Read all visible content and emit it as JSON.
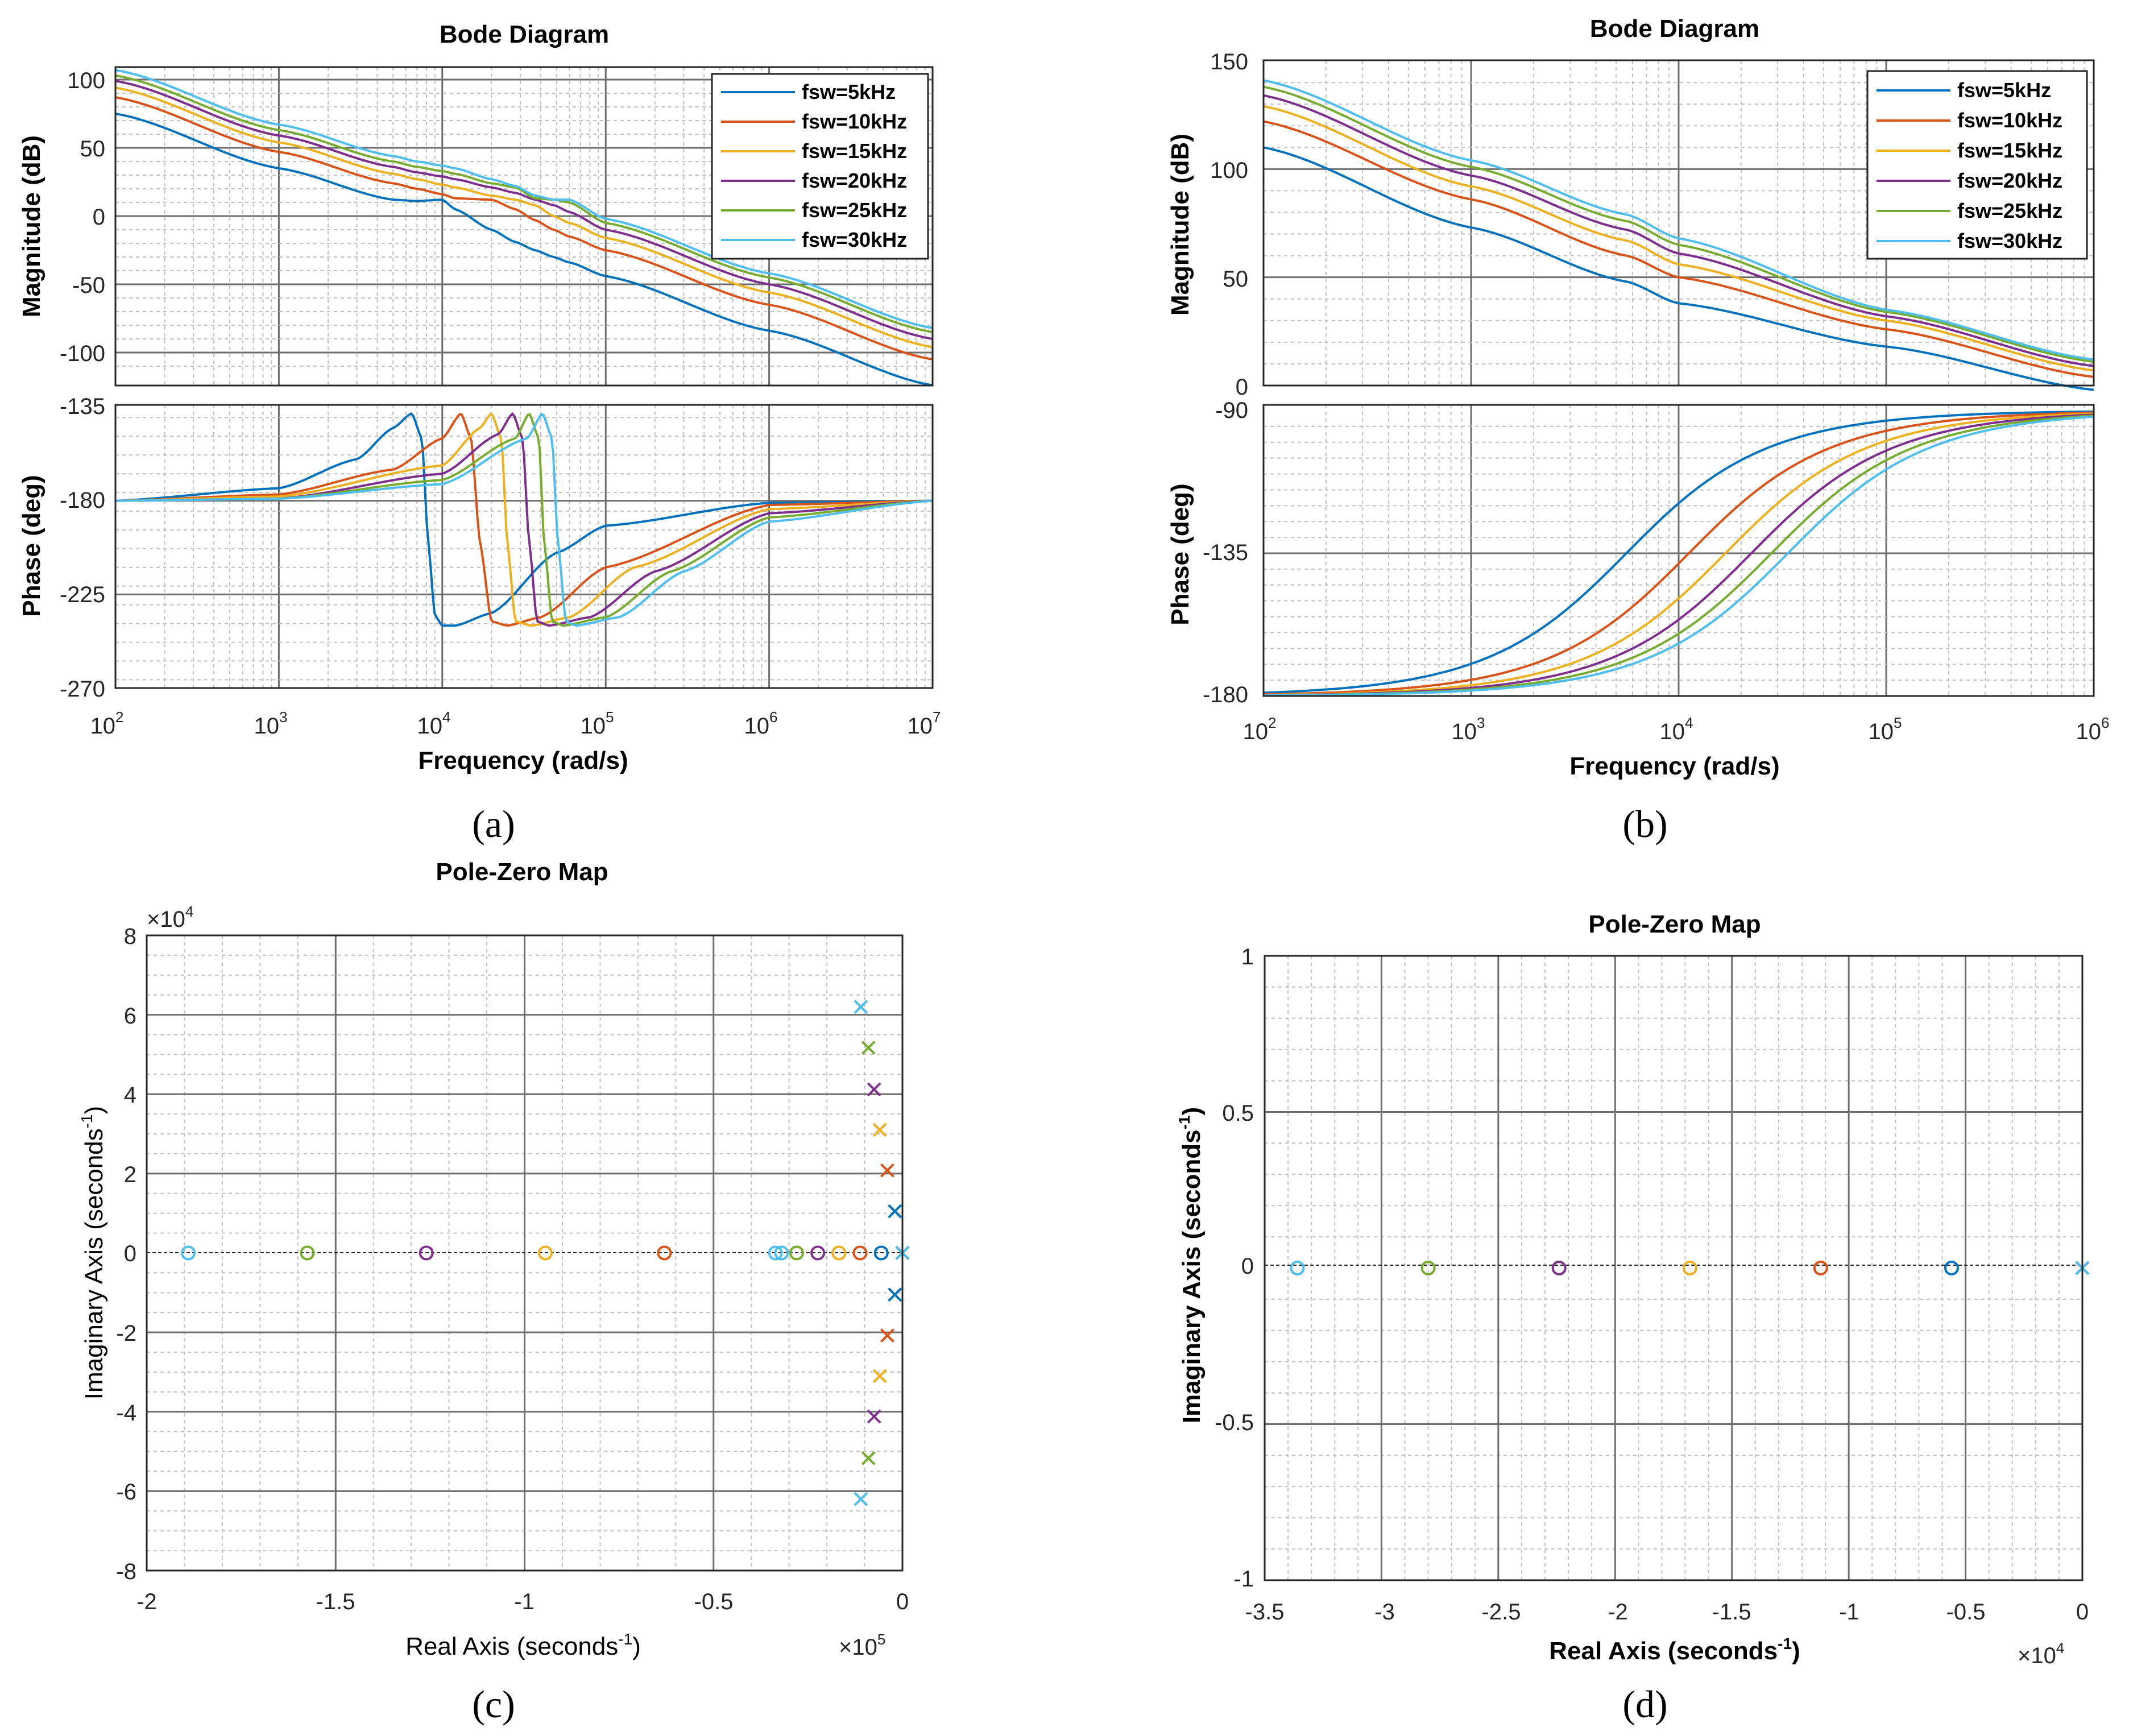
{
  "colors": [
    "#0072BD",
    "#D95319",
    "#EDB120",
    "#7E2F8E",
    "#77AC30",
    "#4DBEEE"
  ],
  "panels": {
    "a": {
      "caption": "(a)",
      "title": "Bode Diagram",
      "xlabel": "Frequency  (rad/s)",
      "mag_ylabel": "Magnitude (dB)",
      "phase_ylabel": "Phase (deg)",
      "xtick_bases": [
        "10",
        "10",
        "10",
        "10",
        "10",
        "10"
      ],
      "xtick_exps": [
        "2",
        "3",
        "4",
        "5",
        "6",
        "7"
      ],
      "mag_ticks": [
        "100",
        "50",
        "0",
        "-50",
        "-100"
      ],
      "phase_ticks": [
        "-135",
        "-180",
        "-225",
        "-270"
      ],
      "legend": [
        "fsw=5kHz",
        "fsw=10kHz",
        "fsw=15kHz",
        "fsw=20kHz",
        "fsw=25kHz",
        "fsw=30kHz"
      ]
    },
    "b": {
      "caption": "(b)",
      "title": "Bode Diagram",
      "xlabel": "Frequency  (rad/s)",
      "mag_ylabel": "Magnitude (dB)",
      "phase_ylabel": "Phase (deg)",
      "xtick_bases": [
        "10",
        "10",
        "10",
        "10",
        "10"
      ],
      "xtick_exps": [
        "2",
        "3",
        "4",
        "5",
        "6"
      ],
      "mag_ticks": [
        "150",
        "100",
        "50",
        "0"
      ],
      "phase_ticks": [
        "-90",
        "-135",
        "-180"
      ],
      "legend": [
        "fsw=5kHz",
        "fsw=10kHz",
        "fsw=15kHz",
        "fsw=20kHz",
        "fsw=25kHz",
        "fsw=30kHz"
      ]
    },
    "c": {
      "caption": "(c)",
      "title": "Pole-Zero Map",
      "xlabel_main": "Real Axis (seconds",
      "xlabel_sup": "-1",
      "xlabel_end": ")",
      "ylabel_main": "Imaginary Axis (seconds",
      "ylabel_sup": "-1",
      "ylabel_end": ")",
      "xticks": [
        "-2",
        "-1.5",
        "-1",
        "-0.5",
        "0"
      ],
      "yticks": [
        "8",
        "6",
        "4",
        "2",
        "0",
        "-2",
        "-4",
        "-6",
        "-8"
      ],
      "x_mult_prefix": "×10",
      "x_mult_exp": "5",
      "y_mult_prefix": "×10",
      "y_mult_exp": "4"
    },
    "d": {
      "caption": "(d)",
      "title": "Pole-Zero Map",
      "xlabel_main": "Real Axis (seconds",
      "xlabel_sup": "-1",
      "xlabel_end": ")",
      "ylabel_main": "Imaginary Axis (seconds",
      "ylabel_sup": "-1",
      "ylabel_end": ")",
      "xticks": [
        "-3.5",
        "-3",
        "-2.5",
        "-2",
        "-1.5",
        "-1",
        "-0.5",
        "0"
      ],
      "yticks": [
        "1",
        "0.5",
        "0",
        "-0.5",
        "-1"
      ],
      "x_mult_prefix": "×10",
      "x_mult_exp": "4"
    }
  },
  "chart_data": [
    {
      "type": "line",
      "panel": "a-magnitude",
      "title": "Bode Diagram",
      "xscale": "log",
      "xlim": [
        100,
        10000000
      ],
      "ylim": [
        -120,
        110
      ],
      "xlabel": "Frequency (rad/s)",
      "ylabel": "Magnitude (dB)",
      "x": [
        100,
        1000,
        5000,
        7000,
        10000,
        12000,
        20000,
        28000,
        37000,
        48000,
        60000,
        100000,
        1000000,
        10000000
      ],
      "series": [
        {
          "name": "fsw=5kHz",
          "values": [
            75,
            35,
            12,
            11,
            12,
            5,
            -10,
            -19,
            -25,
            -30,
            -34,
            -44,
            -84,
            -124
          ]
        },
        {
          "name": "fsw=10kHz",
          "values": [
            87,
            47,
            24,
            20,
            16,
            13,
            12,
            5,
            -3,
            -10,
            -15,
            -25,
            -65,
            -105
          ]
        },
        {
          "name": "fsw=15kHz",
          "values": [
            94,
            54,
            31,
            27,
            23,
            21,
            15,
            12,
            8,
            0,
            -5,
            -16,
            -56,
            -96
          ]
        },
        {
          "name": "fsw=20kHz",
          "values": [
            99,
            59,
            36,
            32,
            29,
            27,
            21,
            17,
            12,
            8,
            3,
            -10,
            -50,
            -90
          ]
        },
        {
          "name": "fsw=25kHz",
          "values": [
            103,
            63,
            40,
            36,
            33,
            31,
            24,
            21,
            13,
            12,
            10,
            -5,
            -45,
            -85
          ]
        },
        {
          "name": "fsw=30kHz",
          "values": [
            107,
            67,
            44,
            40,
            37,
            35,
            27,
            22,
            15,
            12,
            12,
            -2,
            -42,
            -82
          ]
        }
      ]
    },
    {
      "type": "line",
      "panel": "a-phase",
      "xscale": "log",
      "xlim": [
        100,
        10000000
      ],
      "ylim": [
        -270,
        -135
      ],
      "xlabel": "Frequency (rad/s)",
      "ylabel": "Phase (deg)",
      "series": [
        {
          "name": "fsw=5kHz",
          "x": [
            100,
            1000,
            3000,
            5000,
            6500,
            7500,
            8200,
            9000,
            10000,
            12000,
            20000,
            50000,
            100000,
            1000000,
            10000000
          ],
          "values": [
            -180,
            -174,
            -160,
            -145,
            -138,
            -150,
            -200,
            -235,
            -240,
            -240,
            -234,
            -205,
            -192,
            -181,
            -180
          ]
        },
        {
          "name": "fsw=10kHz",
          "x": [
            100,
            1000,
            5000,
            10000,
            13000,
            15000,
            17000,
            20000,
            25000,
            40000,
            100000,
            1000000,
            10000000
          ],
          "values": [
            -180,
            -177,
            -165,
            -150,
            -138,
            -150,
            -200,
            -238,
            -240,
            -236,
            -212,
            -182,
            -180
          ]
        },
        {
          "name": "fsw=15kHz",
          "x": [
            100,
            1000,
            10000,
            17000,
            20000,
            23000,
            25000,
            28000,
            35000,
            60000,
            150000,
            1000000,
            10000000
          ],
          "values": [
            -180,
            -178,
            -163,
            -145,
            -138,
            -150,
            -200,
            -238,
            -240,
            -236,
            -212,
            -184,
            -180
          ]
        },
        {
          "name": "fsw=20kHz",
          "x": [
            100,
            1000,
            10000,
            22000,
            27000,
            31000,
            34000,
            38000,
            45000,
            80000,
            200000,
            1000000,
            10000000
          ],
          "values": [
            -180,
            -179,
            -167,
            -148,
            -138,
            -150,
            -200,
            -238,
            -240,
            -236,
            -214,
            -186,
            -180
          ]
        },
        {
          "name": "fsw=25kHz",
          "x": [
            100,
            1000,
            10000,
            28000,
            34000,
            39000,
            42000,
            47000,
            55000,
            100000,
            250000,
            1000000,
            10000000
          ],
          "values": [
            -180,
            -179,
            -170,
            -150,
            -138,
            -150,
            -200,
            -238,
            -240,
            -236,
            -214,
            -188,
            -180
          ]
        },
        {
          "name": "fsw=30kHz",
          "x": [
            100,
            1000,
            10000,
            33000,
            41000,
            47000,
            51000,
            57000,
            66000,
            120000,
            300000,
            1000000,
            10000000
          ],
          "values": [
            -180,
            -179,
            -172,
            -150,
            -138,
            -150,
            -200,
            -238,
            -240,
            -236,
            -214,
            -190,
            -180
          ]
        }
      ]
    },
    {
      "type": "line",
      "panel": "b-magnitude",
      "title": "Bode Diagram",
      "xscale": "log",
      "xlim": [
        100,
        1000000
      ],
      "ylim": [
        0,
        150
      ],
      "xlabel": "Frequency (rad/s)",
      "ylabel": "Magnitude (dB)",
      "x": [
        100,
        1000,
        5600,
        10000,
        100000,
        1000000
      ],
      "series": [
        {
          "name": "fsw=5kHz",
          "values": [
            110,
            73,
            48,
            38,
            18,
            -2
          ]
        },
        {
          "name": "fsw=10kHz",
          "values": [
            122,
            86,
            60,
            50,
            26,
            4
          ]
        },
        {
          "name": "fsw=15kHz",
          "values": [
            129,
            92,
            67,
            56,
            30,
            7
          ]
        },
        {
          "name": "fsw=20kHz",
          "values": [
            134,
            97,
            72,
            61,
            32,
            9
          ]
        },
        {
          "name": "fsw=25kHz",
          "values": [
            138,
            101,
            76,
            65,
            34,
            11
          ]
        },
        {
          "name": "fsw=30kHz",
          "values": [
            141,
            104,
            79,
            68,
            35,
            12
          ]
        }
      ]
    },
    {
      "type": "line",
      "panel": "b-phase",
      "xscale": "log",
      "xlim": [
        100,
        1000000
      ],
      "ylim": [
        -180,
        -90
      ],
      "xlabel": "Frequency (rad/s)",
      "ylabel": "Phase (deg)",
      "corner_frequencies": [
        5600,
        11200,
        16800,
        22400,
        28000,
        33600
      ],
      "series_names": [
        "fsw=5kHz",
        "fsw=10kHz",
        "fsw=15kHz",
        "fsw=20kHz",
        "fsw=25kHz",
        "fsw=30kHz"
      ]
    },
    {
      "type": "scatter",
      "panel": "c",
      "title": "Pole-Zero Map",
      "xlim": [
        -2.0,
        0
      ],
      "ylim": [
        -8,
        8
      ],
      "x_scale_factor": "10^5",
      "y_scale_factor": "10^4",
      "series": [
        {
          "name": "fsw=5kHz",
          "poles": [
            [
              0,
              0
            ],
            [
              -0.02,
              1.05
            ],
            [
              -0.02,
              -1.05
            ]
          ],
          "zeros": [
            [
              -0.056,
              0
            ]
          ]
        },
        {
          "name": "fsw=10kHz",
          "poles": [
            [
              0,
              0
            ],
            [
              -0.04,
              2.08
            ],
            [
              -0.04,
              -2.08
            ]
          ],
          "zeros": [
            [
              -0.63,
              0
            ],
            [
              -0.112,
              0
            ]
          ]
        },
        {
          "name": "fsw=15kHz",
          "poles": [
            [
              0,
              0
            ],
            [
              -0.06,
              3.1
            ],
            [
              -0.06,
              -3.1
            ]
          ],
          "zeros": [
            [
              -0.945,
              0
            ],
            [
              -0.168,
              0
            ]
          ]
        },
        {
          "name": "fsw=20kHz",
          "poles": [
            [
              0,
              0
            ],
            [
              -0.075,
              4.12
            ],
            [
              -0.075,
              -4.12
            ]
          ],
          "zeros": [
            [
              -1.26,
              0
            ],
            [
              -0.224,
              0
            ]
          ]
        },
        {
          "name": "fsw=25kHz",
          "poles": [
            [
              0,
              0
            ],
            [
              -0.09,
              5.17
            ],
            [
              -0.09,
              -5.17
            ]
          ],
          "zeros": [
            [
              -1.575,
              0
            ],
            [
              -0.28,
              0
            ]
          ]
        },
        {
          "name": "fsw=30kHz",
          "poles": [
            [
              0,
              0
            ],
            [
              -0.11,
              6.2
            ],
            [
              -0.11,
              -6.2
            ]
          ],
          "zeros": [
            [
              -1.89,
              0
            ],
            [
              -0.336,
              0
            ],
            [
              -0.32,
              0
            ]
          ]
        }
      ]
    },
    {
      "type": "scatter",
      "panel": "d",
      "title": "Pole-Zero Map",
      "xlim": [
        -3.5,
        0
      ],
      "ylim": [
        -1,
        1
      ],
      "x_scale_factor": "10^4",
      "series": [
        {
          "name": "fsw=5kHz",
          "poles": [
            [
              0,
              0
            ]
          ],
          "zeros": [
            [
              -0.56,
              0
            ]
          ]
        },
        {
          "name": "fsw=10kHz",
          "poles": [
            [
              0,
              0
            ]
          ],
          "zeros": [
            [
              -1.12,
              0
            ]
          ]
        },
        {
          "name": "fsw=15kHz",
          "poles": [
            [
              0,
              0
            ]
          ],
          "zeros": [
            [
              -1.68,
              0
            ]
          ]
        },
        {
          "name": "fsw=20kHz",
          "poles": [
            [
              0,
              0
            ]
          ],
          "zeros": [
            [
              -2.24,
              0
            ]
          ]
        },
        {
          "name": "fsw=25kHz",
          "poles": [
            [
              0,
              0
            ]
          ],
          "zeros": [
            [
              -2.8,
              0
            ]
          ]
        },
        {
          "name": "fsw=30kHz",
          "poles": [
            [
              0,
              0
            ]
          ],
          "zeros": [
            [
              -3.36,
              0
            ]
          ]
        }
      ]
    }
  ]
}
